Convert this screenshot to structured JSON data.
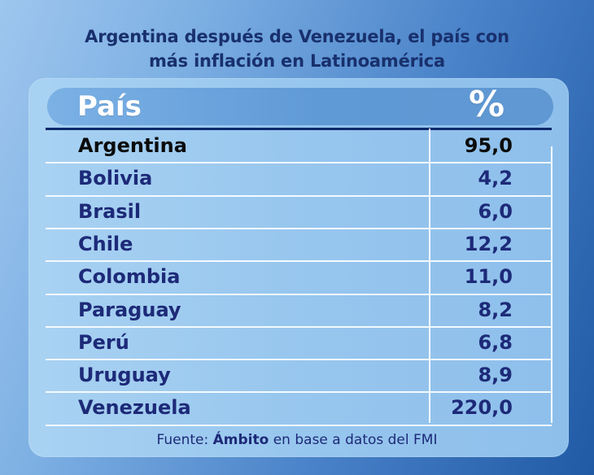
{
  "title": {
    "line1": "Argentina después de Venezuela, el país con",
    "line2": "más inflación en Latinoamérica"
  },
  "source": {
    "prefix": "Fuente:",
    "brand": "Ámbito",
    "suffix": "en base a datos del FMI"
  },
  "colors": {
    "title": "#18306d",
    "text": "#1d2a78",
    "highlight": "#0b0b0b",
    "header_text": "#ffffff",
    "rule": "#0d2a6b",
    "grid": "#f4faff"
  },
  "chart_data": {
    "type": "table",
    "columns": [
      "País",
      "%"
    ],
    "highlight_row": "Argentina",
    "rows": [
      {
        "country": "Argentina",
        "value": "95,0"
      },
      {
        "country": "Bolivia",
        "value": "4,2"
      },
      {
        "country": "Brasil",
        "value": "6,0"
      },
      {
        "country": "Chile",
        "value": "12,2"
      },
      {
        "country": "Colombia",
        "value": "11,0"
      },
      {
        "country": "Paraguay",
        "value": "8,2"
      },
      {
        "country": "Perú",
        "value": "6,8"
      },
      {
        "country": "Uruguay",
        "value": "8,9"
      },
      {
        "country": "Venezuela",
        "value": "220,0"
      }
    ]
  }
}
